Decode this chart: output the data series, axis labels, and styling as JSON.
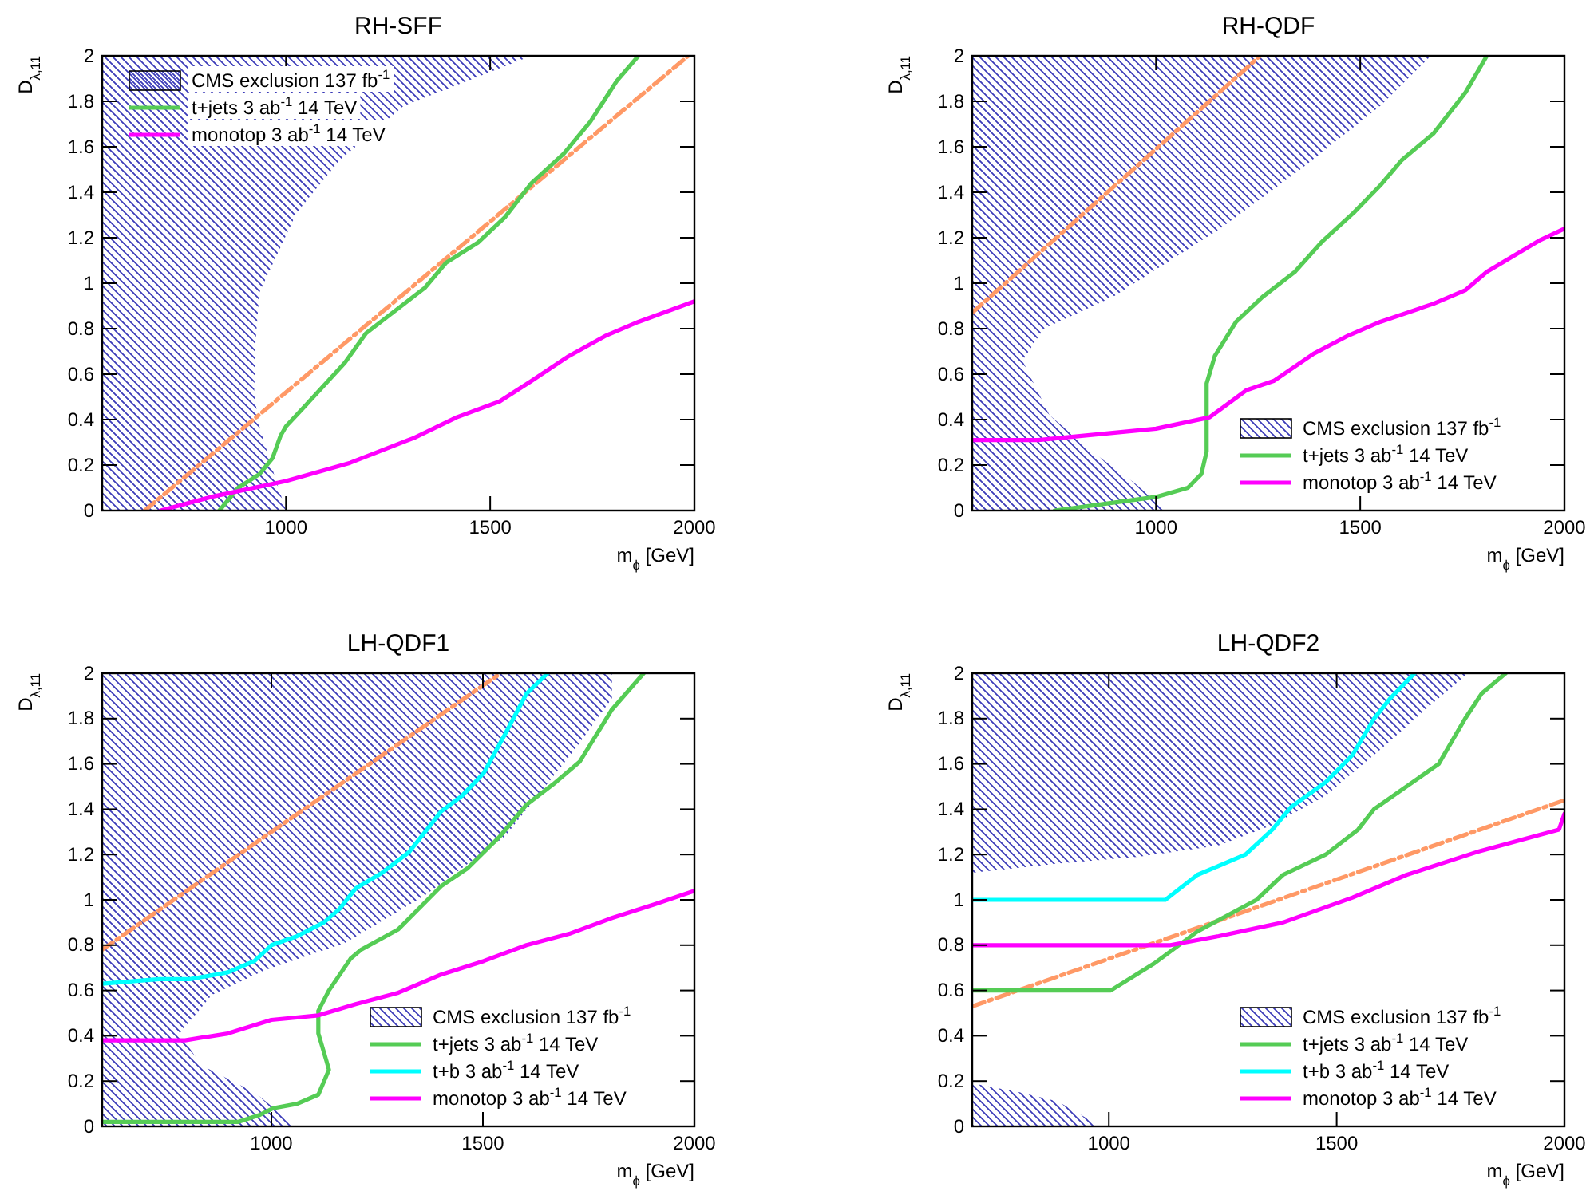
{
  "chart_data": [
    {
      "type": "line",
      "title": "RH-SFF",
      "xlabel": "m$_{ϕ}$ [GeV]",
      "ylabel": "D$_{λ,11}$",
      "xlim": [
        550,
        2000
      ],
      "ylim": [
        0,
        2
      ],
      "xticks": [
        1000,
        1500,
        2000
      ],
      "yticks": [
        0,
        0.2,
        0.4,
        0.6,
        0.8,
        1,
        1.2,
        1.4,
        1.6,
        1.8,
        2
      ],
      "legend": "top left",
      "series": [
        {
          "type": "area",
          "name": "CMS exclusion 137 fb$^{-1}$",
          "color": "#3a3ab8",
          "x": [
            550,
            550,
            1601,
            1288,
            1131,
            1026,
            935,
            925,
            922,
            935,
            974,
            1000
          ],
          "values": [
            0,
            2,
            2,
            1.78,
            1.54,
            1.31,
            0.96,
            0.73,
            0.51,
            0.37,
            0.14,
            0
          ]
        },
        {
          "type": "line",
          "line_style": "dashed",
          "color": "#ff9966",
          "x": [
            654,
            1985
          ],
          "values": [
            0,
            2
          ]
        },
        {
          "name": "t+jets 3 ab$^{-1}$ 14 TeV",
          "color": "#55cc55",
          "x": [
            837,
            883,
            935,
            967,
            987,
            1000,
            1052,
            1144,
            1196,
            1261,
            1340,
            1392,
            1471,
            1536,
            1601,
            1680,
            1745,
            1810,
            1863
          ],
          "values": [
            0,
            0.1,
            0.16,
            0.23,
            0.33,
            0.37,
            0.47,
            0.65,
            0.78,
            0.87,
            0.98,
            1.09,
            1.18,
            1.29,
            1.44,
            1.57,
            1.71,
            1.89,
            2
          ]
        },
        {
          "name": "monotop 3 ab$^{-1}$ 14 TeV",
          "color": "#ff00ff",
          "x": [
            693,
            817,
            1000,
            1157,
            1314,
            1418,
            1523,
            1601,
            1693,
            1784,
            1863,
            2000
          ],
          "values": [
            0,
            0.06,
            0.13,
            0.21,
            0.32,
            0.41,
            0.48,
            0.57,
            0.68,
            0.77,
            0.83,
            0.92
          ]
        }
      ]
    },
    {
      "type": "line",
      "title": "RH-QDF",
      "xlabel": "m$_{ϕ}$ [GeV]",
      "ylabel": "D$_{λ,11}$",
      "xlim": [
        550,
        2000
      ],
      "ylim": [
        0,
        2
      ],
      "xticks": [
        1000,
        1500,
        2000
      ],
      "yticks": [
        0,
        0.2,
        0.4,
        0.6,
        0.8,
        1,
        1.2,
        1.4,
        1.6,
        1.8,
        2
      ],
      "legend": "bottom right",
      "series": [
        {
          "type": "area",
          "name": "CMS exclusion 137 fb$^{-1}$",
          "color": "#3a3ab8",
          "x": [
            550,
            550,
            1673,
            1549,
            1353,
            1157,
            895,
            725,
            673,
            739,
            843,
            948,
            1026
          ],
          "values": [
            0,
            2,
            2,
            1.78,
            1.5,
            1.24,
            0.94,
            0.8,
            0.66,
            0.42,
            0.26,
            0.12,
            0
          ]
        },
        {
          "type": "line",
          "line_style": "dashed",
          "color": "#ff9966",
          "x": [
            550,
            1000,
            1255
          ],
          "values": [
            0.87,
            1.59,
            2
          ]
        },
        {
          "name": "t+jets 3 ab$^{-1}$ 14 TeV",
          "color": "#55cc55",
          "x": [
            752,
            1000,
            1078,
            1111,
            1124,
            1124,
            1144,
            1196,
            1261,
            1340,
            1405,
            1484,
            1549,
            1601,
            1680,
            1758,
            1810
          ],
          "values": [
            0,
            0.06,
            0.1,
            0.16,
            0.26,
            0.56,
            0.68,
            0.83,
            0.94,
            1.05,
            1.18,
            1.31,
            1.43,
            1.54,
            1.66,
            1.84,
            2
          ]
        },
        {
          "name": "monotop 3 ab$^{-1}$ 14 TeV",
          "color": "#ff00ff",
          "x": [
            550,
            712,
            1000,
            1131,
            1222,
            1288,
            1386,
            1471,
            1549,
            1680,
            1758,
            1810,
            1941,
            2000
          ],
          "values": [
            0.31,
            0.31,
            0.36,
            0.41,
            0.53,
            0.57,
            0.69,
            0.77,
            0.83,
            0.91,
            0.97,
            1.05,
            1.19,
            1.24
          ]
        }
      ]
    },
    {
      "type": "line",
      "title": "LH-QDF1",
      "xlabel": "m$_{ϕ}$ [GeV]",
      "ylabel": "D$_{λ,11}$",
      "xlim": [
        600,
        2000
      ],
      "ylim": [
        0,
        2
      ],
      "xticks": [
        1000,
        1500,
        2000
      ],
      "yticks": [
        0,
        0.2,
        0.4,
        0.6,
        0.8,
        1,
        1.2,
        1.4,
        1.6,
        1.8,
        2
      ],
      "legend": "bottom right",
      "series": [
        {
          "type": "area",
          "name": "CMS exclusion 137 fb$^{-1}$",
          "color": "#3a3ab8",
          "x": [
            600,
            600,
            1805,
            1805,
            1716,
            1552,
            1363,
            1174,
            985,
            859,
            783,
            834,
            960,
            1061
          ],
          "values": [
            0,
            2,
            2,
            1.89,
            1.66,
            1.28,
            1.02,
            0.81,
            0.69,
            0.58,
            0.41,
            0.27,
            0.15,
            0
          ]
        },
        {
          "type": "line",
          "line_style": "dashed",
          "color": "#ff9966",
          "x": [
            600,
            1000,
            1542
          ],
          "values": [
            0.78,
            1.3,
            2
          ]
        },
        {
          "name": "t+jets 3 ab$^{-1}$ 14 TeV",
          "color": "#55cc55",
          "x": [
            600,
            922,
            972,
            1004,
            1061,
            1111,
            1136,
            1130,
            1111,
            1111,
            1136,
            1187,
            1212,
            1300,
            1401,
            1464,
            1540,
            1603,
            1666,
            1729,
            1805,
            1880
          ],
          "values": [
            0.02,
            0.02,
            0.05,
            0.08,
            0.1,
            0.14,
            0.25,
            0.29,
            0.41,
            0.51,
            0.6,
            0.74,
            0.78,
            0.87,
            1.06,
            1.14,
            1.28,
            1.42,
            1.51,
            1.61,
            1.84,
            2
          ]
        },
        {
          "name": "t+b 3 ab$^{-1}$ 14 TeV",
          "color": "#00ffff",
          "x": [
            600,
            735,
            808,
            897,
            960,
            1000,
            1061,
            1124,
            1161,
            1199,
            1262,
            1325,
            1376,
            1401,
            1451,
            1502,
            1552,
            1603,
            1653
          ],
          "values": [
            0.63,
            0.65,
            0.65,
            0.68,
            0.73,
            0.8,
            0.84,
            0.9,
            0.96,
            1.05,
            1.12,
            1.21,
            1.33,
            1.39,
            1.46,
            1.56,
            1.73,
            1.91,
            2
          ]
        },
        {
          "name": "monotop 3 ab$^{-1}$ 14 TeV",
          "color": "#ff00ff",
          "x": [
            600,
            796,
            897,
            1000,
            1111,
            1199,
            1300,
            1401,
            1502,
            1603,
            1704,
            1805,
            1905,
            2000
          ],
          "values": [
            0.38,
            0.38,
            0.41,
            0.47,
            0.49,
            0.54,
            0.59,
            0.67,
            0.73,
            0.8,
            0.85,
            0.92,
            0.98,
            1.04
          ]
        }
      ]
    },
    {
      "type": "line",
      "title": "LH-QDF2",
      "xlabel": "m$_{ϕ}$ [GeV]",
      "ylabel": "D$_{λ,11}$",
      "xlim": [
        700,
        2000
      ],
      "ylim": [
        0,
        2
      ],
      "xticks": [
        1000,
        1500,
        2000
      ],
      "yticks": [
        0,
        0.2,
        0.4,
        0.6,
        0.8,
        1,
        1.2,
        1.4,
        1.6,
        1.8,
        2
      ],
      "legend": "bottom right",
      "series": [
        {
          "type": "area",
          "name": "CMS exclusion 137 fb$^{-1}$",
          "color": "#3a3ab8",
          "x": [
            700,
            700,
            1788,
            1712,
            1594,
            1476,
            1359,
            1241,
            1065,
            888,
            null,
            700,
            700,
            806,
            888,
            982
          ],
          "values": [
            1.12,
            2,
            2,
            1.87,
            1.66,
            1.46,
            1.33,
            1.24,
            1.19,
            1.16,
            null,
            0,
            0.19,
            0.15,
            0.11,
            0
          ]
        },
        {
          "type": "line",
          "line_style": "dashed",
          "color": "#ff9966",
          "x": [
            700,
            2000
          ],
          "values": [
            0.53,
            1.44
          ]
        },
        {
          "name": "t+jets 3 ab$^{-1}$ 14 TeV",
          "color": "#55cc55",
          "x": [
            700,
            1004,
            1100,
            1194,
            1324,
            1382,
            1476,
            1547,
            1582,
            1724,
            1782,
            1818,
            1871
          ],
          "values": [
            0.6,
            0.6,
            0.72,
            0.86,
            1,
            1.11,
            1.2,
            1.31,
            1.4,
            1.6,
            1.8,
            1.91,
            2
          ]
        },
        {
          "name": "t+b 3 ab$^{-1}$ 14 TeV",
          "color": "#00ffff",
          "x": [
            700,
            1124,
            1194,
            1300,
            1359,
            1400,
            1476,
            1535,
            1582,
            1618,
            1671
          ],
          "values": [
            1,
            1,
            1.11,
            1.2,
            1.31,
            1.41,
            1.52,
            1.64,
            1.8,
            1.89,
            2
          ]
        },
        {
          "name": "monotop 3 ab$^{-1}$ 14 TeV",
          "color": "#ff00ff",
          "x": [
            700,
            1135,
            1241,
            1382,
            1535,
            1653,
            1806,
            1988,
            2000
          ],
          "values": [
            0.8,
            0.8,
            0.84,
            0.9,
            1.01,
            1.11,
            1.21,
            1.31,
            1.38
          ]
        }
      ]
    }
  ]
}
